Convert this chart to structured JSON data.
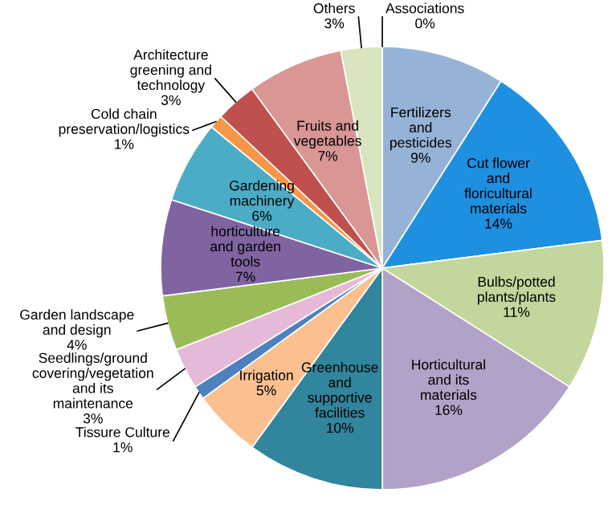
{
  "chart_data": {
    "type": "pie",
    "categories": [
      "Associations",
      "Fertilizers and pesticides",
      "Cut flower and floricultural materials",
      "Bulbs/potted plants/plants",
      "Horticultural and its materials",
      "Greenhouse and supportive facilities",
      "Irrigation",
      "Tissure Culture",
      "Seedlings/ground covering/vegetation and its maintenance",
      "Garden landscape and design",
      "horticulture and garden tools",
      "Gardening machinery",
      "Cold chain preservation/logistics",
      "Architecture greening and technology",
      "Fruits and vegetables",
      "Others"
    ],
    "values": [
      0,
      9,
      14,
      11,
      16,
      10,
      5,
      1,
      3,
      4,
      7,
      6,
      1,
      3,
      7,
      3
    ],
    "value_labels": [
      "0%",
      "9%",
      "14%",
      "11%",
      "16%",
      "10%",
      "5%",
      "1%",
      "3%",
      "4%",
      "7%",
      "6%",
      "1%",
      "3%",
      "7%",
      "3%"
    ],
    "colors": [
      "#8db4e2",
      "#95b3d7",
      "#1f8fe0",
      "#c3d69b",
      "#b3a2c7",
      "#31859c",
      "#fac08f",
      "#4f81bd",
      "#e6b9d8",
      "#9bbb59",
      "#8064a2",
      "#4bacc6",
      "#f79646",
      "#c0504d",
      "#d99694",
      "#d7e4bd"
    ],
    "legend": false
  }
}
